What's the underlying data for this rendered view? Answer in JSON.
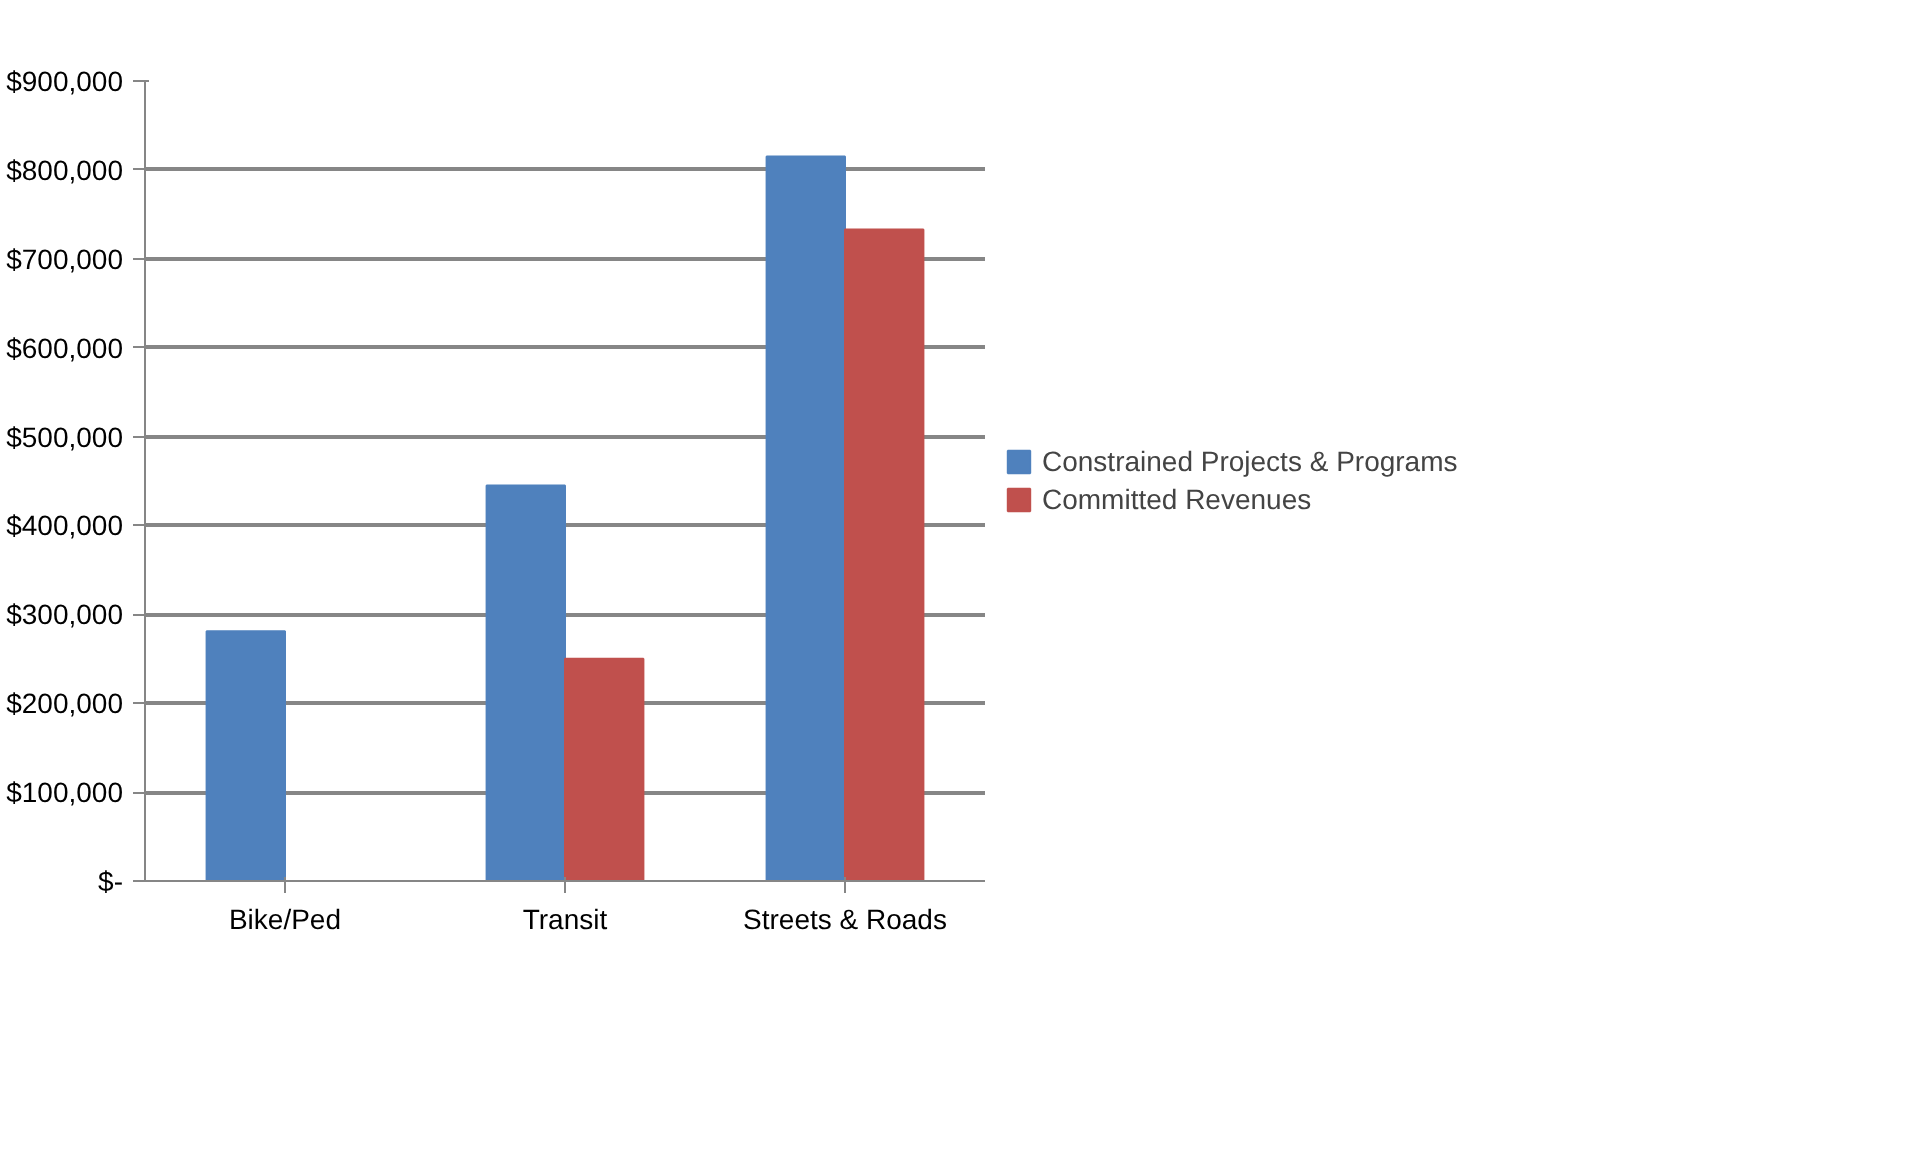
{
  "chart_data": {
    "type": "bar",
    "categories": [
      "Bike/Ped",
      "Transit",
      "Streets & Roads"
    ],
    "series": [
      {
        "name": "Constrained Projects & Programs",
        "color": "#4f81bd",
        "values": [
          281000,
          445000,
          815000
        ]
      },
      {
        "name": "Committed Revenues",
        "color": "#c0504d",
        "values": [
          0,
          250000,
          733000
        ]
      }
    ],
    "ylim": [
      0,
      900000
    ],
    "yticks": [
      {
        "value": 0,
        "label": "$-"
      },
      {
        "value": 100000,
        "label": "$100,000"
      },
      {
        "value": 200000,
        "label": "$200,000"
      },
      {
        "value": 300000,
        "label": "$300,000"
      },
      {
        "value": 400000,
        "label": "$400,000"
      },
      {
        "value": 500000,
        "label": "$500,000"
      },
      {
        "value": 600000,
        "label": "$600,000"
      },
      {
        "value": 700000,
        "label": "$700,000"
      },
      {
        "value": 800000,
        "label": "$800,000"
      },
      {
        "value": 900000,
        "label": "$900,000"
      }
    ],
    "grid": "y",
    "legend": "right"
  }
}
